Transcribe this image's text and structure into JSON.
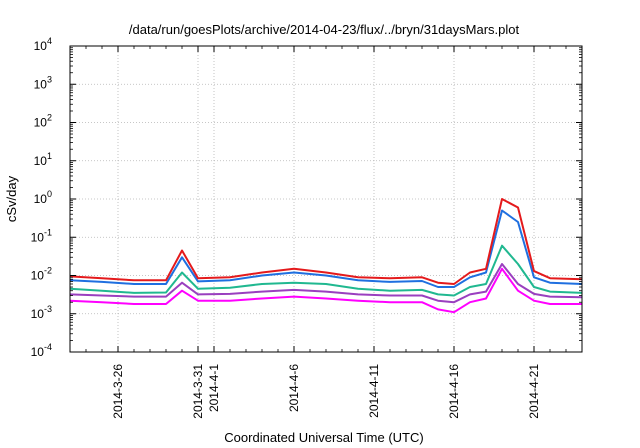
{
  "chart_data": {
    "type": "line",
    "title": "/data/run/goesPlots/archive/2014-04-23/flux/../bryn/31daysMars.plot",
    "xlabel": "Coordinated Universal Time (UTC)",
    "ylabel": "cSv/day",
    "y_scale": "log",
    "ylim": [
      0.0001,
      10000
    ],
    "y_ticks": [
      {
        "base": "10",
        "exp": "-4",
        "value": 0.0001
      },
      {
        "base": "10",
        "exp": "-3",
        "value": 0.001
      },
      {
        "base": "10",
        "exp": "-2",
        "value": 0.01
      },
      {
        "base": "10",
        "exp": "-1",
        "value": 0.1
      },
      {
        "base": "10",
        "exp": "0",
        "value": 1
      },
      {
        "base": "10",
        "exp": "1",
        "value": 10
      },
      {
        "base": "10",
        "exp": "2",
        "value": 100
      },
      {
        "base": "10",
        "exp": "3",
        "value": 1000
      },
      {
        "base": "10",
        "exp": "4",
        "value": 10000
      }
    ],
    "xlim": [
      "2014-03-23",
      "2014-04-24"
    ],
    "x_ticks": [
      "2014-3-26",
      "2014-3-31",
      "2014-4-1",
      "2014-4-6",
      "2014-4-11",
      "2014-4-16",
      "2014-4-21"
    ],
    "grid": true,
    "x": [
      "2014-03-23",
      "2014-03-25",
      "2014-03-27",
      "2014-03-29",
      "2014-03-30",
      "2014-03-31",
      "2014-04-02",
      "2014-04-04",
      "2014-04-06",
      "2014-04-08",
      "2014-04-10",
      "2014-04-12",
      "2014-04-14",
      "2014-04-15",
      "2014-04-16",
      "2014-04-17",
      "2014-04-18",
      "2014-04-19",
      "2014-04-20",
      "2014-04-21",
      "2014-04-22",
      "2014-04-24"
    ],
    "series": [
      {
        "color": "#e41a1c",
        "values": [
          0.0095,
          0.0085,
          0.0075,
          0.0075,
          0.045,
          0.0085,
          0.009,
          0.012,
          0.015,
          0.012,
          0.009,
          0.0085,
          0.009,
          0.0065,
          0.006,
          0.012,
          0.015,
          1.0,
          0.6,
          0.013,
          0.0085,
          0.008
        ]
      },
      {
        "color": "#1f6fe0",
        "values": [
          0.0075,
          0.0068,
          0.006,
          0.006,
          0.03,
          0.007,
          0.0075,
          0.01,
          0.012,
          0.01,
          0.0075,
          0.0068,
          0.0072,
          0.005,
          0.005,
          0.009,
          0.012,
          0.5,
          0.25,
          0.009,
          0.0065,
          0.006
        ]
      },
      {
        "color": "#20b890",
        "values": [
          0.0045,
          0.004,
          0.0035,
          0.0036,
          0.012,
          0.0045,
          0.0048,
          0.006,
          0.0065,
          0.006,
          0.0045,
          0.004,
          0.0042,
          0.0032,
          0.003,
          0.005,
          0.006,
          0.06,
          0.02,
          0.005,
          0.0038,
          0.0035
        ]
      },
      {
        "color": "#9a3fbf",
        "values": [
          0.0032,
          0.003,
          0.0028,
          0.0028,
          0.0065,
          0.0032,
          0.0033,
          0.0038,
          0.0042,
          0.0038,
          0.0032,
          0.003,
          0.003,
          0.0022,
          0.002,
          0.0032,
          0.0038,
          0.02,
          0.006,
          0.0033,
          0.0028,
          0.0027
        ]
      },
      {
        "color": "#ff00ff",
        "values": [
          0.0022,
          0.002,
          0.0018,
          0.0018,
          0.004,
          0.0022,
          0.0022,
          0.0025,
          0.0028,
          0.0025,
          0.0022,
          0.002,
          0.002,
          0.0013,
          0.0011,
          0.002,
          0.0025,
          0.015,
          0.004,
          0.0022,
          0.0018,
          0.0018
        ]
      }
    ]
  }
}
